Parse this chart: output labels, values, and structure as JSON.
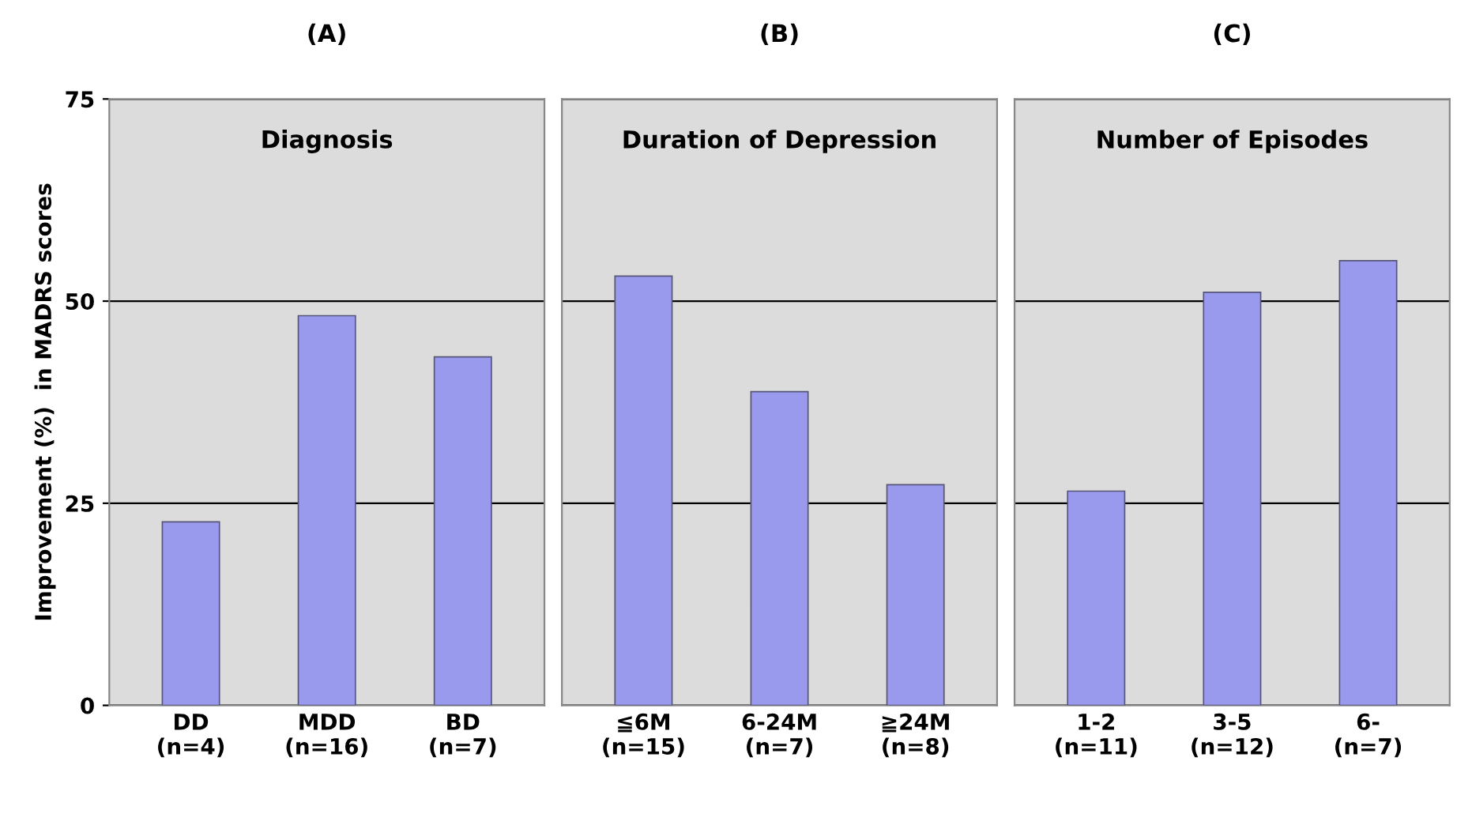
{
  "chart_data": [
    {
      "type": "bar",
      "title": "(A)",
      "subtitle": "Diagnosis",
      "ylabel": "Improvement (%)  in MADRS scores",
      "categories": [
        "DD\n(n=4)",
        "MDD\n(n=16)",
        "BD\n(n=7)"
      ],
      "values": [
        22.7,
        48.2,
        43.1
      ],
      "color": "#9999ee",
      "ylim": [
        0,
        75
      ],
      "yticks": [
        0,
        25,
        50,
        75
      ],
      "grid": "y"
    },
    {
      "type": "bar",
      "title": "(B)",
      "subtitle": "Duration of Depression",
      "categories": [
        "≦6M\n(n=15)",
        "6-24M\n(n=7)",
        "≧24M\n(n=8)"
      ],
      "values": [
        53.1,
        38.8,
        27.3
      ],
      "color": "#9999ee",
      "ylim": [
        0,
        75
      ],
      "yticks": [
        0,
        25,
        50,
        75
      ],
      "grid": "y",
      "tick_labels": "x"
    },
    {
      "type": "bar",
      "title": "(C)",
      "subtitle": "Number of Episodes",
      "categories": [
        "1-2\n(n=11)",
        "3-5\n(n=12)",
        "6-\n(n=7)"
      ],
      "values": [
        26.5,
        51.1,
        55.0
      ],
      "color": "#9999ee",
      "ylim": [
        0,
        75
      ],
      "yticks": [
        0,
        25,
        50,
        75
      ],
      "grid": "y",
      "tick_labels": "x"
    }
  ]
}
